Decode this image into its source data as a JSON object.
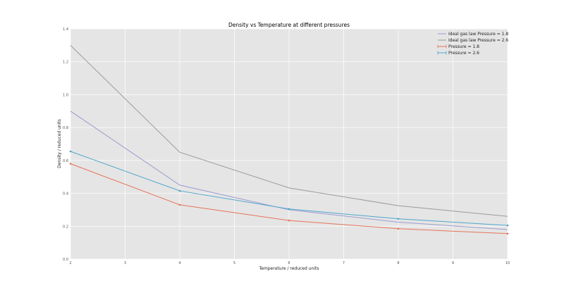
{
  "chart_data": {
    "type": "line",
    "title": "Density vs Temperature at different pressures",
    "xlabel": "Temperature / reduced units",
    "ylabel": "Density / reduced units",
    "xlim": [
      2,
      10
    ],
    "ylim": [
      0.0,
      1.4
    ],
    "xticks": [
      "2",
      "3",
      "4",
      "5",
      "6",
      "7",
      "8",
      "9",
      "10"
    ],
    "yticks": [
      "0.0",
      "0.2",
      "0.4",
      "0.6",
      "0.8",
      "1.0",
      "1.2",
      "1.4"
    ],
    "grid": true,
    "legend_position": "top-right",
    "series": [
      {
        "name": "Ideal gas law Pressure = 1.8",
        "color": "#9c9bd1",
        "marker": false,
        "x": [
          2,
          4,
          6,
          8,
          10
        ],
        "y": [
          0.9,
          0.45,
          0.3,
          0.225,
          0.18
        ]
      },
      {
        "name": "Ideal gas law Pressure = 2.6",
        "color": "#9b9b9b",
        "marker": false,
        "x": [
          2,
          4,
          6,
          8,
          10
        ],
        "y": [
          1.3,
          0.65,
          0.433,
          0.325,
          0.26
        ]
      },
      {
        "name": "Pressure = 1.8",
        "color": "#e6735a",
        "marker": true,
        "x": [
          2,
          4,
          6,
          8,
          10
        ],
        "y": [
          0.58,
          0.33,
          0.235,
          0.185,
          0.155
        ]
      },
      {
        "name": "Pressure = 2.6",
        "color": "#4ea6cc",
        "marker": true,
        "x": [
          2,
          4,
          6,
          8,
          10
        ],
        "y": [
          0.655,
          0.415,
          0.305,
          0.245,
          0.205
        ]
      }
    ]
  }
}
